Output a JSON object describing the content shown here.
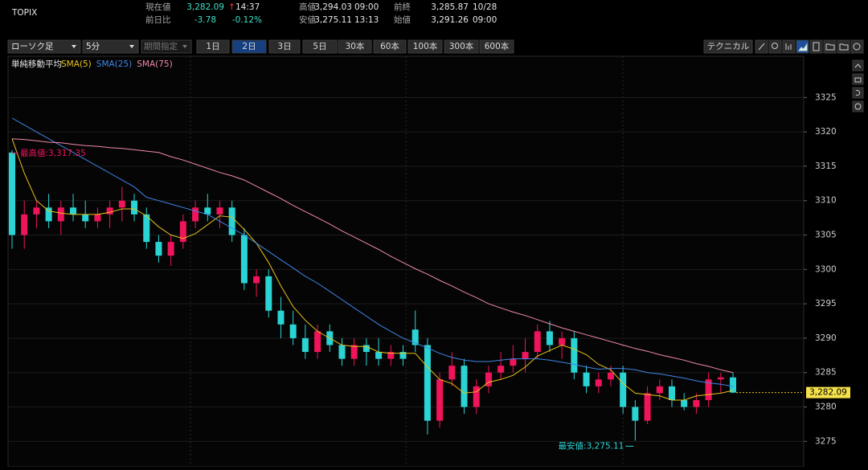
{
  "header": {
    "symbol": "TOPIX",
    "current": {
      "label": "現在値",
      "value": "3,282.09",
      "arrow": "↑",
      "time": "14:37"
    },
    "change": {
      "label": "前日比",
      "value": "-3.78",
      "percent": "-0.12%"
    },
    "high": {
      "label": "高値",
      "value": "3,294.03",
      "time": "09:00"
    },
    "low": {
      "label": "安値",
      "value": "3,275.11",
      "time": "13:13"
    },
    "prev_close": {
      "label": "前終",
      "value": "3,285.87",
      "time": "10/28"
    },
    "open": {
      "label": "始値",
      "value": "3,291.26",
      "time": "09:00"
    }
  },
  "toolbar": {
    "chart_style": "ローソク足",
    "interval": "5分",
    "period": "期間指定",
    "ranges": [
      "1日",
      "2日",
      "3日",
      "5日",
      "30本",
      "60本",
      "100本",
      "300本",
      "600本"
    ],
    "selected_range": "2日",
    "technical": "テクニカル"
  },
  "chart_data": {
    "type": "candlestick",
    "indicator_label": "単純移動平均",
    "categories": [
      null,
      null,
      null,
      null,
      null,
      null,
      null,
      null,
      null,
      null,
      null,
      null,
      null,
      null,
      null,
      null,
      null,
      null,
      null,
      null,
      null,
      null,
      null,
      null,
      null,
      null,
      null,
      null,
      null,
      null,
      null,
      null,
      null,
      null,
      null,
      null,
      null,
      null,
      null,
      null,
      null,
      null,
      null,
      null,
      null,
      null,
      null,
      null,
      null,
      null,
      null,
      null,
      null,
      null,
      null,
      null,
      null,
      null,
      null,
      null
    ],
    "up_color": "#f0145a",
    "down_color": "#2ad4d4",
    "open": [
      3317,
      3305,
      3308,
      3309,
      3307,
      3309,
      3308,
      3307,
      3308,
      3309,
      3310,
      3308,
      3304,
      3302,
      3304,
      3307,
      3309,
      3308,
      3309,
      3305,
      3298,
      3299,
      3294,
      3292,
      3290,
      3288,
      3291,
      3289,
      3287,
      3289,
      3288,
      3287,
      3288,
      3291.26,
      3289,
      3278,
      3284,
      3286,
      3280,
      3283,
      3285,
      3286,
      3287,
      3288,
      3291,
      3289,
      3290,
      3285,
      3283,
      3284,
      3285,
      3280,
      3278,
      3282,
      3283,
      3281,
      3280,
      3281,
      3284,
      3284.3
    ],
    "high": [
      3317.35,
      3310,
      3310,
      3311,
      3310,
      3311,
      3310,
      3309,
      3310,
      3312,
      3311,
      3309,
      3305,
      3305,
      3308,
      3310,
      3311,
      3310,
      3310,
      3306,
      3300,
      3300,
      3296,
      3294,
      3292,
      3292,
      3292,
      3290,
      3290,
      3290,
      3290,
      3289,
      3289,
      3294.03,
      3290,
      3285,
      3288,
      3287,
      3284,
      3286,
      3288,
      3289,
      3290,
      3292,
      3292.5,
      3291,
      3291,
      3286,
      3285,
      3286,
      3286,
      3281,
      3283,
      3284,
      3284,
      3282,
      3282,
      3285,
      3285,
      3285
    ],
    "low": [
      3303,
      3303,
      3306,
      3306,
      3305,
      3307,
      3306,
      3306,
      3306,
      3307,
      3307,
      3303,
      3301,
      3300.5,
      3303,
      3306,
      3307,
      3306,
      3304,
      3297,
      3296,
      3293,
      3290,
      3289,
      3287,
      3287,
      3288,
      3286,
      3286,
      3286,
      3286,
      3286,
      3286,
      3288,
      3276,
      3277,
      3283,
      3279,
      3279,
      3282,
      3284,
      3285,
      3285,
      3287,
      3288,
      3287,
      3284,
      3282,
      3282,
      3283,
      3279,
      3275.11,
      3277.5,
      3281,
      3280,
      3279.5,
      3279,
      3280,
      3282,
      3282
    ],
    "close": [
      3305,
      3308,
      3309,
      3307,
      3309,
      3308,
      3307,
      3308,
      3309,
      3310,
      3308,
      3304,
      3302,
      3304,
      3307,
      3309,
      3308,
      3309,
      3305,
      3298,
      3299,
      3294,
      3292,
      3290,
      3288,
      3291,
      3289,
      3287,
      3289,
      3288,
      3287,
      3288,
      3287,
      3289,
      3278,
      3284,
      3286,
      3280,
      3283,
      3285,
      3286,
      3287,
      3288,
      3291,
      3289,
      3290,
      3285,
      3283,
      3284,
      3285,
      3280,
      3278,
      3282,
      3283,
      3281,
      3280,
      3281,
      3284,
      3284.3,
      3282.09
    ],
    "series": [
      {
        "name": "SMA(5)",
        "color": "#e8c21a",
        "values": [
          3319,
          3314,
          3310,
          3308.5,
          3308.2,
          3308,
          3308,
          3308,
          3308.3,
          3308.8,
          3308.8,
          3307.8,
          3306.2,
          3305,
          3304.5,
          3305.2,
          3306.5,
          3307.8,
          3307.6,
          3305.8,
          3303.8,
          3301,
          3297.6,
          3294.6,
          3292.6,
          3291,
          3290,
          3289,
          3288.8,
          3288.8,
          3288,
          3287.8,
          3287.8,
          3287.8,
          3285.8,
          3284,
          3283.4,
          3282,
          3282.2,
          3283.6,
          3284,
          3284.6,
          3285.8,
          3287.4,
          3288.2,
          3289,
          3288.4,
          3287.6,
          3286.2,
          3285.4,
          3283.4,
          3282,
          3281.8,
          3281.6,
          3281,
          3281,
          3281.6,
          3281.8,
          3282,
          3282.4
        ]
      },
      {
        "name": "SMA(25)",
        "color": "#3f86e6",
        "values": [
          3322,
          3321,
          3320,
          3319,
          3318,
          3317,
          3316,
          3315,
          3314,
          3313,
          3312,
          3310.5,
          3310,
          3309.5,
          3309,
          3308.5,
          3308,
          3307,
          3306,
          3305,
          3303.8,
          3302.6,
          3301.4,
          3300.2,
          3299,
          3298,
          3296.8,
          3295.6,
          3294.4,
          3293.2,
          3292,
          3291,
          3290,
          3289.3,
          3288.6,
          3287.8,
          3287.2,
          3286.8,
          3286.6,
          3286.6,
          3286.8,
          3287,
          3287,
          3287,
          3286.8,
          3286.5,
          3286.2,
          3285.8,
          3285.5,
          3285.6,
          3285.6,
          3285.4,
          3285,
          3284.8,
          3284.5,
          3284.2,
          3283.8,
          3283.5,
          3283.3,
          3283
        ]
      },
      {
        "name": "SMA(75)",
        "color": "#f08aa8",
        "values": [
          3319,
          3318.9,
          3318.7,
          3318.5,
          3318.4,
          3318.2,
          3318,
          3317.9,
          3317.7,
          3317.6,
          3317.4,
          3317.2,
          3317,
          3316.4,
          3315.9,
          3315.3,
          3314.7,
          3314.1,
          3313.6,
          3313,
          3312.1,
          3311.2,
          3310.3,
          3309.3,
          3308.4,
          3307.5,
          3306.6,
          3305.6,
          3304.7,
          3303.8,
          3302.9,
          3301.9,
          3301,
          3300.1,
          3299.3,
          3298.4,
          3297.6,
          3296.7,
          3295.9,
          3295,
          3294.4,
          3293.8,
          3293.3,
          3292.7,
          3292.1,
          3291.5,
          3291,
          3290.5,
          3290,
          3289.5,
          3289,
          3288.5,
          3288.1,
          3287.6,
          3287.2,
          3286.8,
          3286.3,
          3285.9,
          3285.4,
          3285
        ]
      }
    ],
    "annotations": [
      {
        "label": "最高値:3,317.35",
        "value": 3317.35,
        "color": "#f0145a"
      },
      {
        "label": "最安値:3,275.11",
        "value": 3275.11,
        "color": "#2ad4d4"
      }
    ],
    "last_price": {
      "value": 3282.09,
      "label": "3,282.09"
    },
    "ylim": [
      3271.3,
      3331
    ],
    "yticks": [
      3275,
      3280,
      3285,
      3290,
      3295,
      3300,
      3305,
      3310,
      3315,
      3320,
      3325
    ],
    "grid": true
  }
}
